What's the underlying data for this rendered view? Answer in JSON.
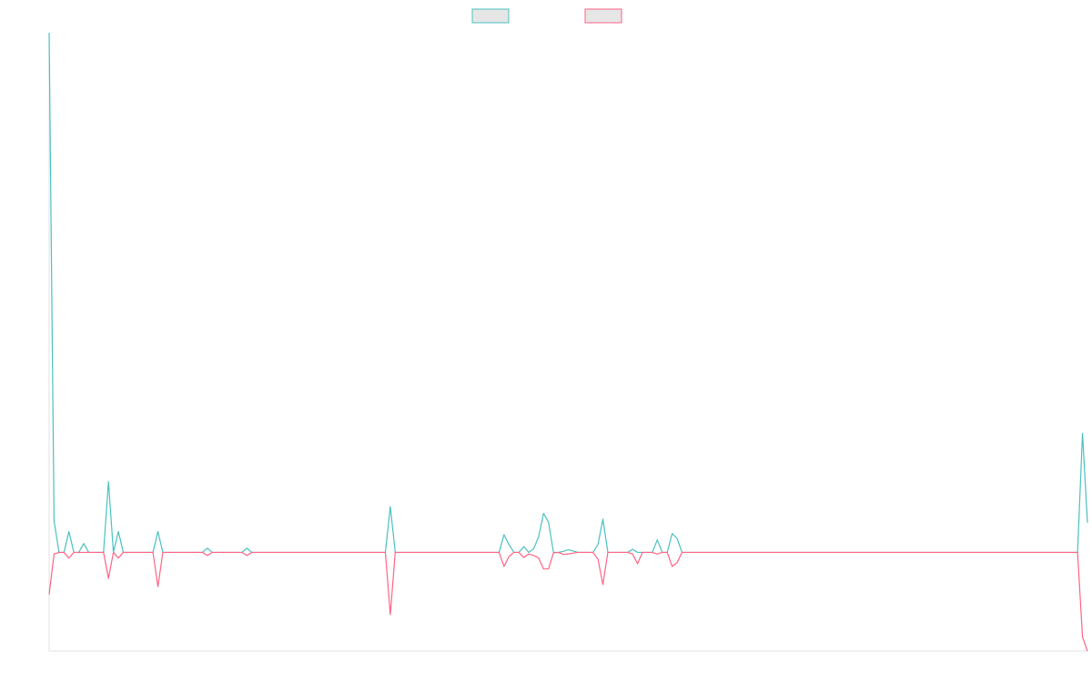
{
  "chart_data": {
    "type": "line",
    "legend": "top",
    "xlim": [
      0,
      210
    ],
    "ylim": [
      -19,
      100
    ],
    "x": [
      0,
      1,
      2,
      3,
      4,
      5,
      6,
      7,
      8,
      11,
      12,
      13,
      14,
      15,
      21,
      22,
      23,
      31,
      32,
      33,
      39,
      40,
      41,
      68,
      69,
      70,
      91,
      92,
      93,
      94,
      95,
      96,
      97,
      98,
      99,
      100,
      101,
      102,
      103,
      104,
      105,
      107,
      110,
      111,
      112,
      113,
      117,
      118,
      119,
      120,
      122,
      123,
      124,
      125,
      126,
      127,
      128,
      208,
      209,
      210
    ],
    "series": [
      {
        "color": "#4bc0c0",
        "values": [
          100,
          6,
          0,
          0,
          4,
          0,
          0,
          1.7,
          0,
          0,
          13.6,
          0,
          4,
          0,
          0,
          4,
          0,
          0,
          0.8,
          0,
          0,
          0.8,
          0,
          0,
          8.8,
          0,
          0,
          3.4,
          1.5,
          0,
          0,
          1.1,
          0,
          0.7,
          3,
          7.5,
          5.8,
          0,
          0,
          0.2,
          0.5,
          0,
          0,
          1.5,
          6.4,
          0,
          0,
          0.6,
          0,
          0,
          0,
          2.4,
          0,
          0,
          3.6,
          2.7,
          0,
          0,
          22.9,
          5.7
        ]
      },
      {
        "color": "#ff6384",
        "values": [
          -8.1,
          -0.3,
          0,
          0,
          -1.1,
          0,
          0,
          0,
          0,
          0,
          -5,
          0,
          -1.1,
          0,
          0,
          -6.6,
          0,
          0,
          -0.6,
          0,
          0,
          -0.6,
          0,
          0,
          -12,
          0,
          0,
          -2.7,
          -0.8,
          0,
          0,
          -1,
          -0.3,
          -0.6,
          -1.1,
          -3.2,
          -3.2,
          -0.1,
          0,
          -0.4,
          -0.3,
          0,
          0,
          -1.3,
          -6.2,
          0,
          0,
          -0.3,
          -2.2,
          0,
          0,
          -0.3,
          0,
          0,
          -2.7,
          -2,
          0,
          0,
          -16.3,
          -19
        ]
      }
    ]
  }
}
